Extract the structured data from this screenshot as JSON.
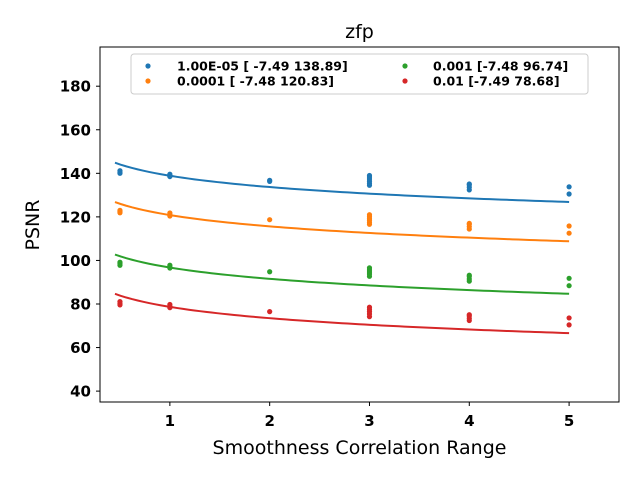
{
  "chart_data": {
    "type": "scatter",
    "title": "zfp",
    "xlabel": "Smoothness Correlation Range",
    "ylabel": "PSNR",
    "xlim": [
      0.3,
      5.5
    ],
    "ylim": [
      35,
      198
    ],
    "xticks": [
      1,
      2,
      3,
      4,
      5
    ],
    "xtick_labels": [
      "1",
      "2",
      "3",
      "4",
      "5"
    ],
    "yticks": [
      40,
      60,
      80,
      100,
      120,
      140,
      160,
      180
    ],
    "ytick_labels": [
      "40",
      "60",
      "80",
      "100",
      "120",
      "140",
      "160",
      "180"
    ],
    "grid": false,
    "legend_position": "top",
    "series": [
      {
        "name": "1.00E-05 [ -7.49 138.89]",
        "color": "#1f77b4",
        "fit": {
          "a": -7.49,
          "b": 138.89,
          "x_range": [
            0.45,
            5.0
          ]
        },
        "points": [
          [
            0.5,
            140.5
          ],
          [
            0.5,
            141.2
          ],
          [
            0.5,
            140.0
          ],
          [
            1,
            138.5
          ],
          [
            1,
            139.6
          ],
          [
            1,
            138.9
          ],
          [
            2,
            136.8
          ],
          [
            2,
            136.3
          ],
          [
            3,
            134.5
          ],
          [
            3,
            135.4
          ],
          [
            3,
            136.4
          ],
          [
            3,
            137.4
          ],
          [
            3,
            138.3
          ],
          [
            3,
            139.0
          ],
          [
            4,
            132.4
          ],
          [
            4,
            133.6
          ],
          [
            4,
            134.7
          ],
          [
            4,
            135.1
          ],
          [
            5,
            133.8
          ],
          [
            5,
            130.5
          ]
        ]
      },
      {
        "name": "0.0001 [ -7.48 120.83]",
        "color": "#ff7f0e",
        "fit": {
          "a": -7.48,
          "b": 120.83,
          "x_range": [
            0.45,
            5.0
          ]
        },
        "points": [
          [
            0.5,
            121.9
          ],
          [
            0.5,
            123.0
          ],
          [
            0.5,
            122.4
          ],
          [
            1,
            120.4
          ],
          [
            1,
            121.8
          ],
          [
            1,
            121.0
          ],
          [
            2,
            118.7
          ],
          [
            3,
            116.6
          ],
          [
            3,
            117.5
          ],
          [
            3,
            118.5
          ],
          [
            3,
            119.3
          ],
          [
            3,
            120.2
          ],
          [
            3,
            121.0
          ],
          [
            4,
            114.4
          ],
          [
            4,
            115.5
          ],
          [
            4,
            116.6
          ],
          [
            4,
            117.0
          ],
          [
            5,
            115.8
          ],
          [
            5,
            112.5
          ]
        ]
      },
      {
        "name": "0.001 [-7.48 96.74]",
        "color": "#2ca02c",
        "fit": {
          "a": -7.48,
          "b": 96.74,
          "x_range": [
            0.45,
            5.0
          ]
        },
        "points": [
          [
            0.5,
            97.8
          ],
          [
            0.5,
            99.2
          ],
          [
            0.5,
            98.5
          ],
          [
            1,
            96.5
          ],
          [
            1,
            97.8
          ],
          [
            1,
            97.1
          ],
          [
            2,
            94.8
          ],
          [
            3,
            92.7
          ],
          [
            3,
            93.8
          ],
          [
            3,
            94.7
          ],
          [
            3,
            95.6
          ],
          [
            3,
            96.6
          ],
          [
            4,
            90.5
          ],
          [
            4,
            91.5
          ],
          [
            4,
            92.6
          ],
          [
            4,
            93.2
          ],
          [
            5,
            91.8
          ],
          [
            5,
            88.4
          ]
        ]
      },
      {
        "name": "0.01 [-7.49 78.68]",
        "color": "#d62728",
        "fit": {
          "a": -7.49,
          "b": 78.68,
          "x_range": [
            0.45,
            5.0
          ]
        },
        "points": [
          [
            0.5,
            80.2
          ],
          [
            0.5,
            81.1
          ],
          [
            0.5,
            79.6
          ],
          [
            1,
            78.3
          ],
          [
            1,
            79.8
          ],
          [
            1,
            78.9
          ],
          [
            2,
            76.5
          ],
          [
            3,
            74.2
          ],
          [
            3,
            75.4
          ],
          [
            3,
            76.5
          ],
          [
            3,
            77.5
          ],
          [
            3,
            78.5
          ],
          [
            4,
            72.4
          ],
          [
            4,
            73.4
          ],
          [
            4,
            74.5
          ],
          [
            4,
            75.1
          ],
          [
            5,
            73.6
          ],
          [
            5,
            70.4
          ]
        ]
      }
    ]
  }
}
